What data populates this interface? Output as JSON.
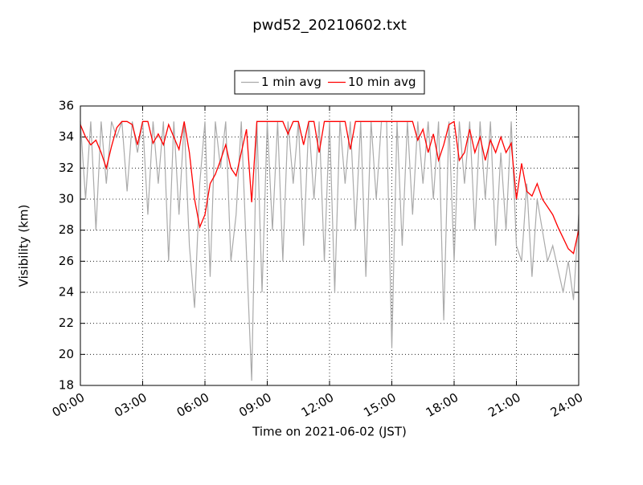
{
  "chart_data": {
    "type": "line",
    "title": "pwd52_20210602.txt",
    "xlabel": "Time on 2021-06-02 (JST)",
    "ylabel": "Visibility (km)",
    "x": [
      0,
      0.25,
      0.5,
      0.75,
      1,
      1.25,
      1.5,
      1.75,
      2,
      2.25,
      2.5,
      2.75,
      3,
      3.25,
      3.5,
      3.75,
      4,
      4.25,
      4.5,
      4.75,
      5,
      5.25,
      5.5,
      5.75,
      6,
      6.25,
      6.5,
      6.75,
      7,
      7.25,
      7.5,
      7.75,
      8,
      8.25,
      8.5,
      8.75,
      9,
      9.25,
      9.5,
      9.75,
      10,
      10.25,
      10.5,
      10.75,
      11,
      11.25,
      11.5,
      11.75,
      12,
      12.25,
      12.5,
      12.75,
      13,
      13.25,
      13.5,
      13.75,
      14,
      14.25,
      14.5,
      14.75,
      15,
      15.25,
      15.5,
      15.75,
      16,
      16.25,
      16.5,
      16.75,
      17,
      17.25,
      17.5,
      17.75,
      18,
      18.25,
      18.5,
      18.75,
      19,
      19.25,
      19.5,
      19.75,
      20,
      20.25,
      20.5,
      20.75,
      21,
      21.25,
      21.5,
      21.75,
      22,
      22.25,
      22.5,
      22.75,
      23,
      23.25,
      23.5,
      23.75,
      24
    ],
    "series": [
      {
        "name": "1 min avg",
        "color": "#aaaaaa",
        "values": [
          35,
          30,
          35,
          28,
          35,
          31,
          35,
          34,
          35,
          30.5,
          35,
          33,
          35,
          29,
          35,
          31,
          35,
          26,
          35,
          29,
          35,
          27,
          23,
          31,
          35,
          25,
          35,
          32,
          35,
          26,
          29,
          35,
          26.5,
          18.3,
          35,
          24,
          35,
          28,
          35,
          26,
          35,
          31,
          35,
          27,
          35,
          30,
          35,
          26,
          35,
          24,
          35,
          31,
          35,
          28,
          35,
          25,
          35,
          30,
          35,
          35,
          20.4,
          35,
          27,
          35,
          29,
          35,
          31,
          35,
          30,
          35,
          22.2,
          35,
          26,
          35,
          31,
          35,
          28,
          35,
          30,
          35,
          27,
          33,
          28,
          35,
          27,
          26,
          31,
          25,
          30,
          28,
          26,
          27,
          25.5,
          24,
          26,
          23.5,
          29
        ]
      },
      {
        "name": "10 min avg",
        "color": "#ff0000",
        "values": [
          34.8,
          34,
          33.5,
          33.8,
          33,
          32,
          33.4,
          34.6,
          35,
          35,
          34.8,
          33.5,
          35,
          35,
          33.6,
          34.2,
          33.5,
          34.8,
          34,
          33.2,
          35,
          33,
          30,
          28.2,
          29,
          31,
          31.6,
          32.5,
          33.5,
          32,
          31.5,
          33,
          34.5,
          29.8,
          35,
          35,
          35,
          35,
          35,
          35,
          34.2,
          35,
          35,
          33.5,
          35,
          35,
          33,
          35,
          35,
          35,
          35,
          35,
          33.2,
          35,
          35,
          35,
          35,
          35,
          35,
          35,
          35,
          35,
          35,
          35,
          35,
          33.8,
          34.5,
          33,
          34.2,
          32.5,
          33.5,
          34.8,
          35,
          32.5,
          33,
          34.5,
          33,
          34,
          32.5,
          33.8,
          33,
          34,
          33,
          33.6,
          30,
          32.3,
          30.5,
          30.2,
          31,
          30,
          29.5,
          29,
          28.2,
          27.5,
          26.8,
          26.5,
          28
        ]
      }
    ],
    "xlim": [
      0,
      24
    ],
    "xticks": [
      {
        "value": 0,
        "label": "00:00"
      },
      {
        "value": 3,
        "label": "03:00"
      },
      {
        "value": 6,
        "label": "06:00"
      },
      {
        "value": 9,
        "label": "09:00"
      },
      {
        "value": 12,
        "label": "12:00"
      },
      {
        "value": 15,
        "label": "15:00"
      },
      {
        "value": 18,
        "label": "18:00"
      },
      {
        "value": 21,
        "label": "21:00"
      },
      {
        "value": 24,
        "label": "24:00"
      }
    ],
    "ylim": [
      18,
      36
    ],
    "yticks": [
      18,
      20,
      22,
      24,
      26,
      28,
      30,
      32,
      34,
      36
    ],
    "grid": true,
    "legend": "top"
  }
}
